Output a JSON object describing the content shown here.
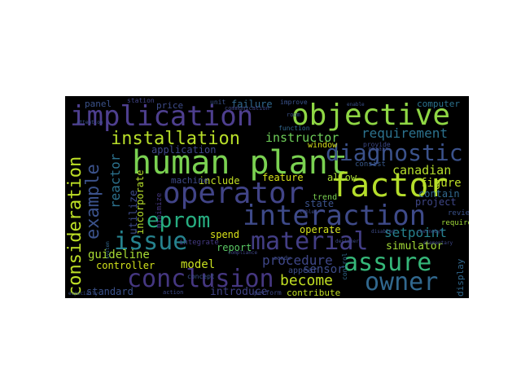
{
  "palette": [
    "#3b528b",
    "#21908d",
    "#5dc863",
    "#b5de2b",
    "#414487",
    "#2a788e",
    "#7ad151",
    "#35b779",
    "#443983",
    "#27ad81"
  ],
  "words": [
    {
      "id": "implication",
      "text": "implication",
      "c": "#4e3f8f"
    },
    {
      "id": "objective",
      "text": "objective",
      "c": "#8fd744"
    },
    {
      "id": "human-plant",
      "text": "human plant",
      "c": "#7ad151"
    },
    {
      "id": "installation",
      "text": "installation",
      "c": "#b8de29"
    },
    {
      "id": "instructor",
      "text": "instructor",
      "c": "#6ece58"
    },
    {
      "id": "diagnostic",
      "text": "diagnostic",
      "c": "#3b528b"
    },
    {
      "id": "operator",
      "text": "operator",
      "c": "#414487"
    },
    {
      "id": "factor",
      "text": "factor",
      "c": "#b5de2b"
    },
    {
      "id": "interaction",
      "text": "interaction",
      "c": "#3e4a89"
    },
    {
      "id": "eprom",
      "text": "eprom",
      "c": "#27ad81"
    },
    {
      "id": "issue",
      "text": "issue",
      "c": "#26828e"
    },
    {
      "id": "material",
      "text": "material",
      "c": "#433e85"
    },
    {
      "id": "assure",
      "text": "assure",
      "c": "#35b779"
    },
    {
      "id": "conclusion",
      "text": "conclusion",
      "c": "#453781"
    },
    {
      "id": "owner",
      "text": "owner",
      "c": "#31688e"
    },
    {
      "id": "become",
      "text": "become",
      "c": "#c2df23"
    },
    {
      "id": "procedure",
      "text": "procedure",
      "c": "#3f4788"
    },
    {
      "id": "model",
      "text": "model",
      "c": "#c8e020"
    },
    {
      "id": "controller",
      "text": "controller",
      "c": "#d2e21b"
    },
    {
      "id": "guideline",
      "text": "guideline",
      "c": "#a8db34"
    },
    {
      "id": "standard",
      "text": "standard",
      "c": "#3b528b"
    },
    {
      "id": "introduce",
      "text": "introduce",
      "c": "#414487"
    },
    {
      "id": "contribute",
      "text": "contribute",
      "c": "#c2df23"
    },
    {
      "id": "sensor",
      "text": "sensor",
      "c": "#3e4c8a"
    },
    {
      "id": "simulator",
      "text": "simulator",
      "c": "#a2da37"
    },
    {
      "id": "setpoint",
      "text": "setpoint",
      "c": "#26828e"
    },
    {
      "id": "requirement",
      "text": "requirement",
      "c": "#2c728e"
    },
    {
      "id": "canadian",
      "text": "canadian",
      "c": "#b5de2b"
    },
    {
      "id": "figure",
      "text": "figure",
      "c": "#bddf26"
    },
    {
      "id": "contain",
      "text": "contain",
      "c": "#31688e"
    },
    {
      "id": "project",
      "text": "project",
      "c": "#3f4788"
    },
    {
      "id": "allow",
      "text": "allow",
      "c": "#a8db34"
    },
    {
      "id": "feature",
      "text": "feature",
      "c": "#d8e219"
    },
    {
      "id": "state",
      "text": "state",
      "c": "#3b528b"
    },
    {
      "id": "operate",
      "text": "operate",
      "c": "#d2e21b"
    },
    {
      "id": "report",
      "text": "report",
      "c": "#5ac864"
    },
    {
      "id": "spend",
      "text": "spend",
      "c": "#d8e219"
    },
    {
      "id": "include",
      "text": "include",
      "c": "#c2df23"
    },
    {
      "id": "machine",
      "text": "machine",
      "c": "#3e4a89"
    },
    {
      "id": "application",
      "text": "application",
      "c": "#3f4788"
    },
    {
      "id": "failure",
      "text": "failure",
      "c": "#31688e"
    },
    {
      "id": "price",
      "text": "price",
      "c": "#3e4c8a"
    },
    {
      "id": "panel",
      "text": "panel",
      "c": "#3b528b"
    },
    {
      "id": "computer",
      "text": "computer",
      "c": "#2c728e"
    },
    {
      "id": "trend",
      "text": "trend",
      "c": "#7ad151"
    },
    {
      "id": "window",
      "text": "window",
      "c": "#d8e219"
    },
    {
      "id": "appear",
      "text": "appear",
      "c": "#3e4c8a"
    },
    {
      "id": "consist",
      "text": "consist",
      "c": "#38598c"
    },
    {
      "id": "review",
      "text": "review",
      "c": "#3b528b"
    },
    {
      "id": "require",
      "text": "require",
      "c": "#a0da39"
    },
    {
      "id": "display",
      "text": "display",
      "c": "#31688e"
    },
    {
      "id": "consideration",
      "text": "consideration",
      "c": "#bddf26"
    },
    {
      "id": "example",
      "text": "example",
      "c": "#3b528b"
    },
    {
      "id": "reactor",
      "text": "reactor",
      "c": "#2c728e"
    },
    {
      "id": "incorporate",
      "text": "incorporate",
      "c": "#b5de2b"
    },
    {
      "id": "utilize",
      "text": "utilize",
      "c": "#3e4c8a"
    },
    {
      "id": "minimize",
      "text": "minimize",
      "c": "#453781"
    },
    {
      "id": "integrate",
      "text": "integrate",
      "c": "#443983"
    },
    {
      "id": "perform",
      "text": "perform",
      "c": "#3e4a89"
    },
    {
      "id": "concept",
      "text": "concept",
      "c": "#3b528b"
    },
    {
      "id": "function",
      "text": "function",
      "c": "#31688e"
    },
    {
      "id": "provide",
      "text": "provide",
      "c": "#3e4a89"
    },
    {
      "id": "improve",
      "text": "improve",
      "c": "#3b528b"
    },
    {
      "id": "communication",
      "text": "communication",
      "c": "#3f4788"
    },
    {
      "id": "station",
      "text": "station",
      "c": "#414487"
    },
    {
      "id": "unit",
      "text": "unit",
      "c": "#3b528b"
    },
    {
      "id": "candu",
      "text": "candu",
      "c": "#3e4c8a"
    },
    {
      "id": "control",
      "text": "control",
      "c": "#31688e"
    },
    {
      "id": "action",
      "text": "action",
      "c": "#3e4a89"
    },
    {
      "id": "room",
      "text": "room",
      "c": "#3b528b"
    },
    {
      "id": "retain",
      "text": "retain",
      "c": "#3e4c8a"
    },
    {
      "id": "especially",
      "text": "especially",
      "c": "#3b528b"
    },
    {
      "id": "designer",
      "text": "designer",
      "c": "#3e4a89"
    },
    {
      "id": "system",
      "text": "system",
      "c": "#31688e"
    },
    {
      "id": "compliance",
      "text": "compliance",
      "c": "#3f4788"
    },
    {
      "id": "table",
      "text": "table",
      "c": "#3e4c8a"
    },
    {
      "id": "enable",
      "text": "enable",
      "c": "#3b528b"
    },
    {
      "id": "chernobyl",
      "text": "chernobyl",
      "c": "#3e4a89"
    },
    {
      "id": "attention",
      "text": "attention",
      "c": "#3b528b"
    },
    {
      "id": "elementary",
      "text": "elementary",
      "c": "#3f4788"
    },
    {
      "id": "disabled",
      "text": "disabled",
      "c": "#3e4c8a"
    }
  ]
}
